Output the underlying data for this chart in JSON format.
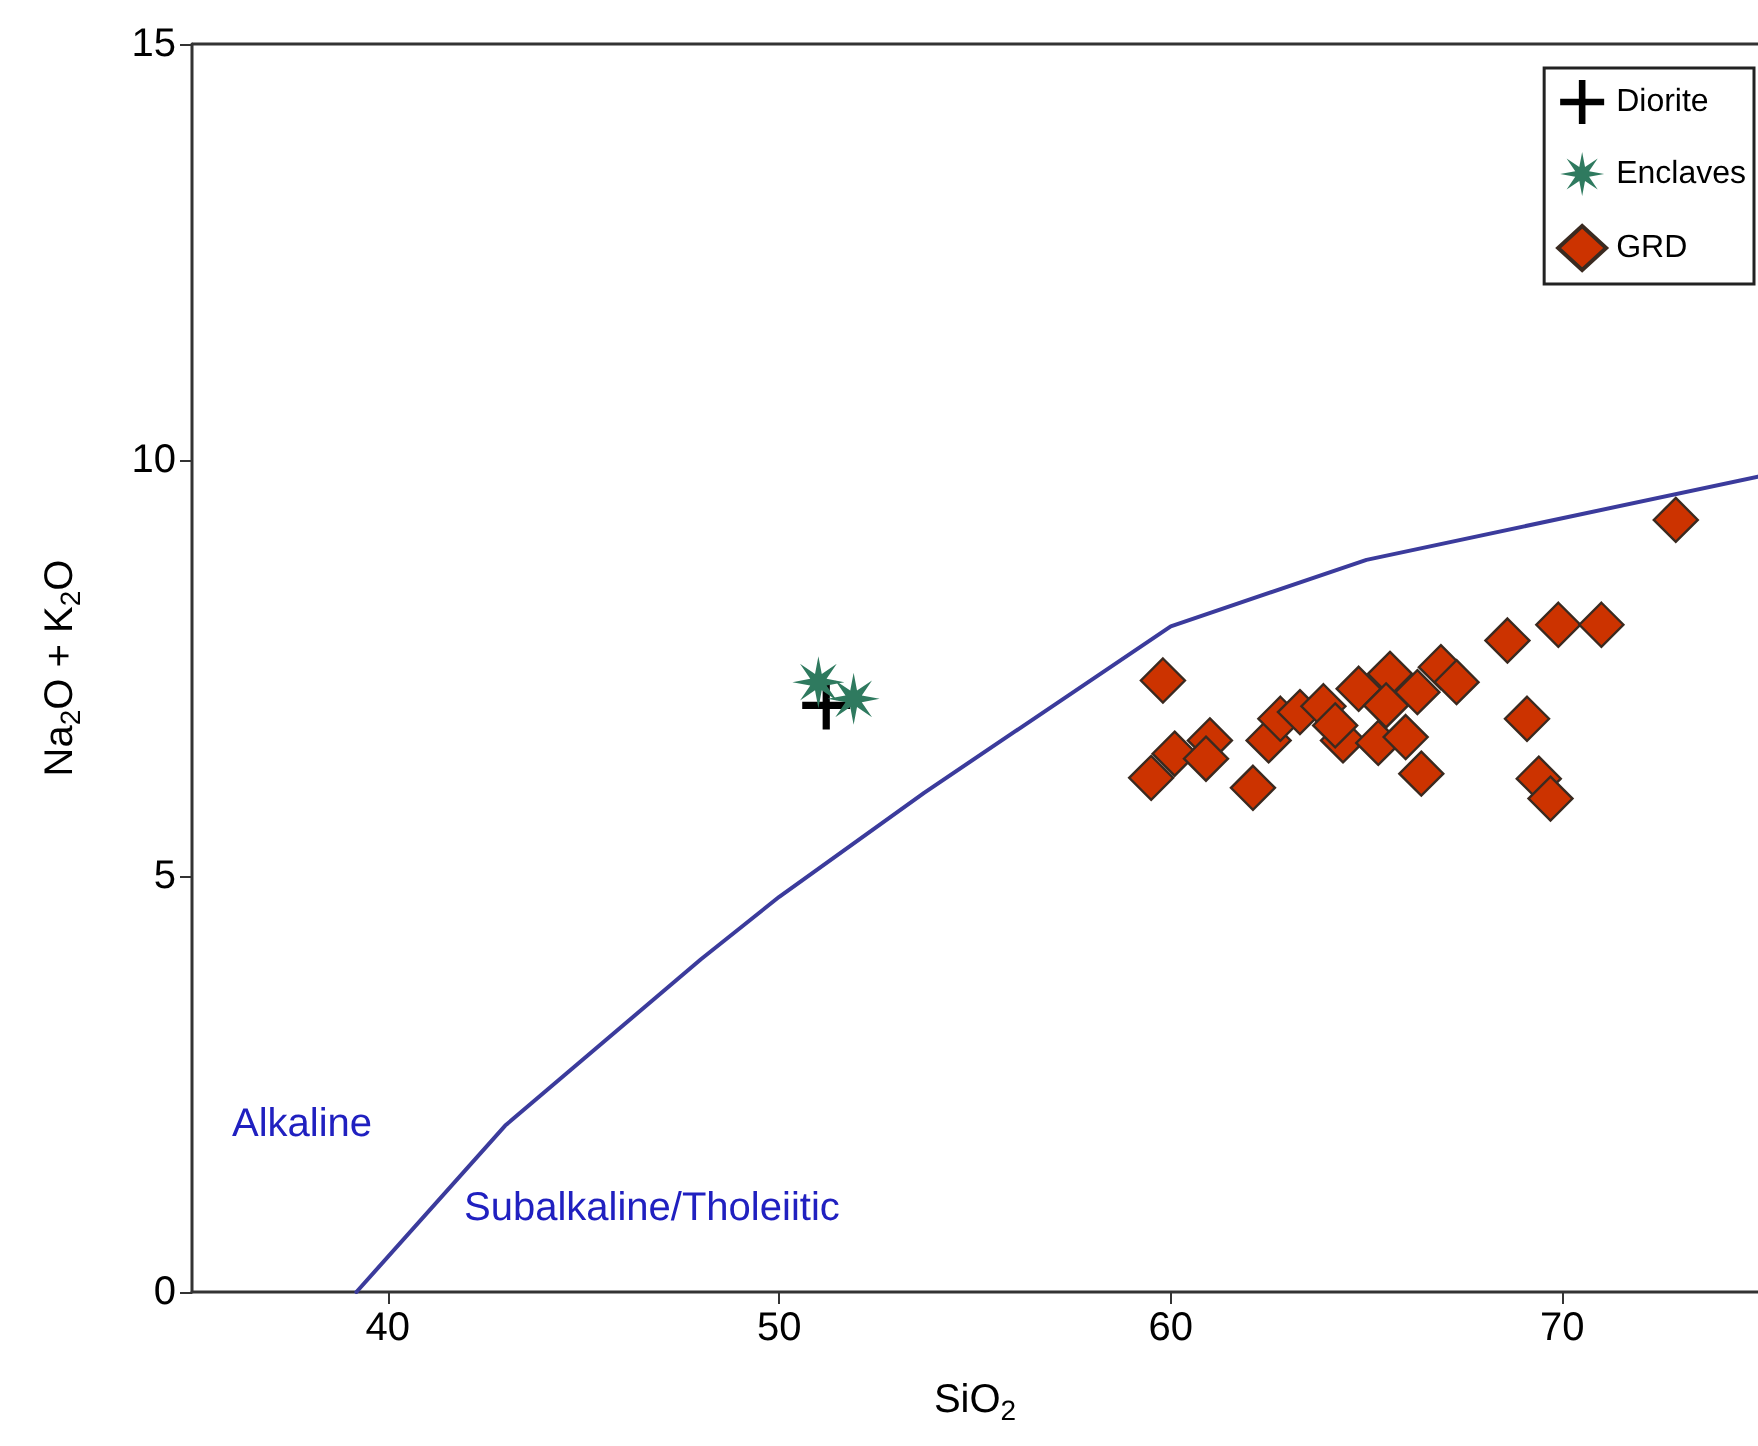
{
  "chart_data": {
    "type": "scatter",
    "xlabel": "SiO$_{2}$",
    "ylabel": "Na$_{2}$O + K$_{2}$O",
    "xlim": [
      35,
      75
    ],
    "ylim": [
      0,
      15
    ],
    "xticks": [
      40,
      50,
      60,
      70
    ],
    "yticks": [
      0,
      5,
      10,
      15
    ],
    "grid": false,
    "legend": "top right",
    "annotations": [
      "Alkaline",
      "Subalkaline/Tholeiitic"
    ],
    "series": [
      {
        "type": "line",
        "color": "#3b3b9c",
        "marker": "none",
        "line_style": "solid",
        "x": [
          39.2,
          43,
          45,
          48,
          50,
          53.7,
          60,
          65,
          75
        ],
        "values": [
          0,
          2,
          2.8,
          4,
          4.75,
          6,
          8,
          8.8,
          9.8
        ]
      },
      {
        "name": "Diorite",
        "color": "#000000",
        "marker": "cross",
        "x": [
          51.2
        ],
        "values": [
          7.05
        ]
      },
      {
        "name": "Enclaves",
        "color": "#2f7a5f",
        "marker": "star",
        "x": [
          51.0,
          51.9
        ],
        "values": [
          7.33,
          7.13
        ]
      },
      {
        "name": "GRD",
        "color": "#cc3300",
        "marker": "diamond",
        "x": [
          72.9,
          59.8,
          59.5,
          60.1,
          61.0,
          60.9,
          62.1,
          62.5,
          62.8,
          63.3,
          63.9,
          64.4,
          64.2,
          64.8,
          65.6,
          65.5,
          65.3,
          66.0,
          66.3,
          66.4,
          66.9,
          67.3,
          68.6,
          69.1,
          69.9,
          71.0,
          69.4,
          69.7
        ],
        "values": [
          9.28,
          7.35,
          6.18,
          6.47,
          6.63,
          6.41,
          6.06,
          6.63,
          6.89,
          6.97,
          7.04,
          6.63,
          6.81,
          7.25,
          7.43,
          7.05,
          6.6,
          6.67,
          7.21,
          6.23,
          7.51,
          7.33,
          7.83,
          6.89,
          8.02,
          8.02,
          6.17,
          5.93
        ]
      }
    ]
  }
}
